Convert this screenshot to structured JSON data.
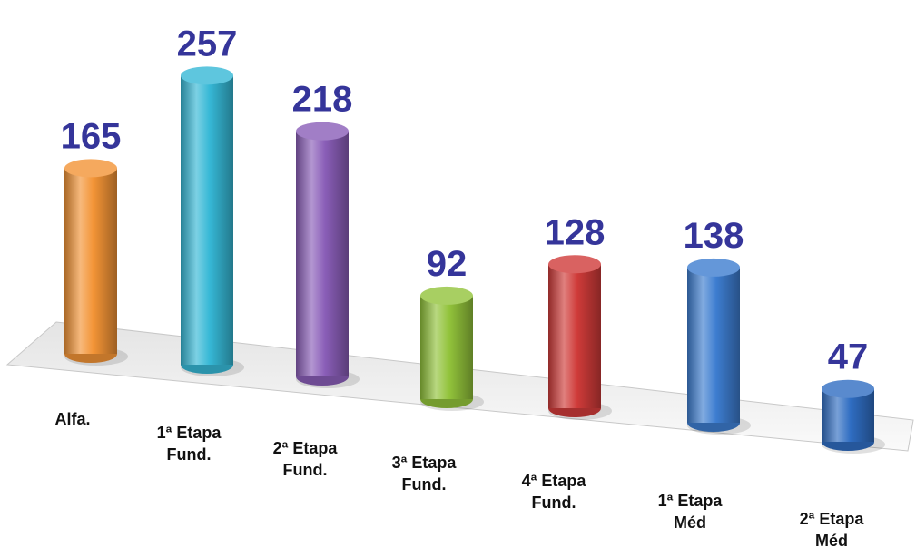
{
  "chart_data": {
    "type": "bar",
    "categories": [
      "Alfa.",
      "1ª Etapa Fund.",
      "2ª Etapa Fund.",
      "3ª Etapa Fund.",
      "4ª Etapa Fund.",
      "1ª Etapa Méd",
      "2ª Etapa Méd"
    ],
    "values": [
      165,
      257,
      218,
      92,
      128,
      138,
      47
    ],
    "colors": [
      "#f39436",
      "#36b8d6",
      "#8a5eb8",
      "#92c33b",
      "#cf3b39",
      "#3d7dd0",
      "#2f6dc2"
    ]
  }
}
